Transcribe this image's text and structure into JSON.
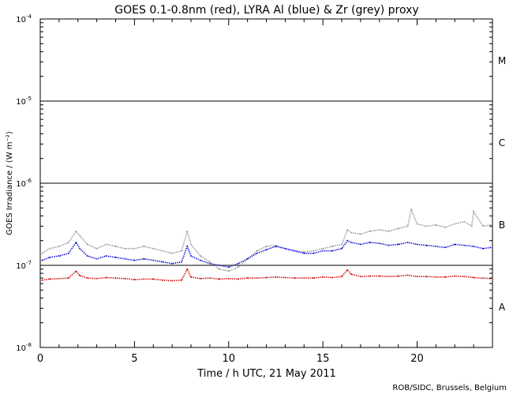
{
  "chart_data": {
    "type": "scatter",
    "title": "GOES 0.1-0.8nm (red), LYRA Al (blue) & Zr (grey) proxy",
    "xlabel": "Time / h UTC, 21 May 2011",
    "ylabel": "GOES Irradiance / (W m⁻²)",
    "xlim": [
      0,
      24
    ],
    "x_ticks": [
      0,
      5,
      10,
      15,
      20
    ],
    "y_scale": "log",
    "ylim": [
      1e-08,
      0.0001
    ],
    "y_ticks": [
      {
        "value": 1e-08,
        "base": "10",
        "exp": "-8"
      },
      {
        "value": 1e-07,
        "base": "10",
        "exp": "-7"
      },
      {
        "value": 1e-06,
        "base": "10",
        "exp": "-6"
      },
      {
        "value": 1e-05,
        "base": "10",
        "exp": "-5"
      },
      {
        "value": 0.0001,
        "base": "10",
        "exp": "-4"
      }
    ],
    "flare_class_lines": [
      1e-07,
      1e-06,
      1e-05
    ],
    "flare_class_labels": [
      {
        "label": "A",
        "center": 3.16e-08
      },
      {
        "label": "B",
        "center": 3.16e-07
      },
      {
        "label": "C",
        "center": 3.16e-06
      },
      {
        "label": "M",
        "center": 3.16e-05
      }
    ],
    "series": [
      {
        "color": "#9a9a9a",
        "x": [
          0.1,
          0.5,
          1.0,
          1.5,
          1.9,
          2.1,
          2.5,
          3.0,
          3.5,
          4.0,
          4.5,
          5.0,
          5.5,
          6.0,
          6.5,
          7.0,
          7.5,
          7.8,
          8.0,
          8.5,
          9.0,
          9.5,
          10.0,
          10.5,
          11.0,
          11.5,
          12.0,
          12.5,
          13.0,
          13.5,
          14.0,
          14.5,
          15.0,
          15.5,
          16.0,
          16.3,
          16.5,
          17.0,
          17.5,
          18.0,
          18.5,
          19.0,
          19.5,
          19.7,
          20.0,
          20.5,
          21.0,
          21.5,
          22.0,
          22.5,
          22.9,
          23.0,
          23.5,
          23.9
        ],
        "y": [
          1.4e-07,
          1.6e-07,
          1.7e-07,
          1.9e-07,
          2.6e-07,
          2.3e-07,
          1.8e-07,
          1.6e-07,
          1.8e-07,
          1.7e-07,
          1.6e-07,
          1.6e-07,
          1.7e-07,
          1.6e-07,
          1.5e-07,
          1.4e-07,
          1.5e-07,
          2.6e-07,
          1.8e-07,
          1.3e-07,
          1.1e-07,
          9e-08,
          8.5e-08,
          9.5e-08,
          1.2e-07,
          1.5e-07,
          1.7e-07,
          1.75e-07,
          1.6e-07,
          1.5e-07,
          1.45e-07,
          1.5e-07,
          1.6e-07,
          1.7e-07,
          1.8e-07,
          2.7e-07,
          2.5e-07,
          2.4e-07,
          2.6e-07,
          2.7e-07,
          2.6e-07,
          2.8e-07,
          3e-07,
          4.8e-07,
          3.2e-07,
          3e-07,
          3.1e-07,
          2.9e-07,
          3.2e-07,
          3.4e-07,
          3e-07,
          4.5e-07,
          3e-07,
          3.1e-07
        ]
      },
      {
        "color": "#1010d0",
        "x": [
          0.1,
          0.5,
          1.0,
          1.5,
          1.9,
          2.1,
          2.5,
          3.0,
          3.5,
          4.0,
          4.5,
          5.0,
          5.5,
          6.0,
          6.5,
          7.0,
          7.5,
          7.8,
          8.0,
          8.5,
          9.0,
          9.5,
          10.0,
          10.5,
          11.0,
          11.5,
          12.0,
          12.5,
          13.0,
          13.5,
          14.0,
          14.5,
          15.0,
          15.5,
          16.0,
          16.3,
          16.5,
          17.0,
          17.5,
          18.0,
          18.5,
          19.0,
          19.5,
          20.0,
          20.5,
          21.0,
          21.5,
          22.0,
          22.5,
          23.0,
          23.5,
          23.9
        ],
        "y": [
          1.15e-07,
          1.25e-07,
          1.3e-07,
          1.4e-07,
          1.9e-07,
          1.6e-07,
          1.3e-07,
          1.2e-07,
          1.3e-07,
          1.25e-07,
          1.2e-07,
          1.15e-07,
          1.2e-07,
          1.15e-07,
          1.1e-07,
          1.05e-07,
          1.1e-07,
          1.7e-07,
          1.3e-07,
          1.15e-07,
          1.05e-07,
          1e-07,
          9.5e-08,
          1.05e-07,
          1.2e-07,
          1.4e-07,
          1.55e-07,
          1.7e-07,
          1.6e-07,
          1.5e-07,
          1.4e-07,
          1.4e-07,
          1.5e-07,
          1.5e-07,
          1.6e-07,
          2e-07,
          1.9e-07,
          1.8e-07,
          1.9e-07,
          1.85e-07,
          1.75e-07,
          1.8e-07,
          1.9e-07,
          1.8e-07,
          1.75e-07,
          1.7e-07,
          1.65e-07,
          1.8e-07,
          1.75e-07,
          1.7e-07,
          1.6e-07,
          1.65e-07
        ]
      },
      {
        "color": "#d01010",
        "x": [
          0.1,
          0.5,
          1.0,
          1.5,
          1.9,
          2.1,
          2.5,
          3.0,
          3.5,
          4.0,
          4.5,
          5.0,
          5.5,
          6.0,
          6.5,
          7.0,
          7.5,
          7.8,
          8.0,
          8.5,
          9.0,
          9.5,
          10.0,
          10.5,
          11.0,
          11.5,
          12.0,
          12.5,
          13.0,
          13.5,
          14.0,
          14.5,
          15.0,
          15.5,
          16.0,
          16.3,
          16.5,
          17.0,
          17.5,
          18.0,
          18.5,
          19.0,
          19.5,
          20.0,
          20.5,
          21.0,
          21.5,
          22.0,
          22.5,
          23.0,
          23.5,
          23.9
        ],
        "y": [
          6.6e-08,
          6.8e-08,
          6.9e-08,
          7e-08,
          8.5e-08,
          7.5e-08,
          7e-08,
          6.9e-08,
          7.1e-08,
          7e-08,
          6.9e-08,
          6.7e-08,
          6.8e-08,
          6.8e-08,
          6.6e-08,
          6.5e-08,
          6.6e-08,
          9e-08,
          7.2e-08,
          6.9e-08,
          7e-08,
          6.8e-08,
          6.9e-08,
          6.8e-08,
          7e-08,
          7e-08,
          7.1e-08,
          7.2e-08,
          7.1e-08,
          7e-08,
          7e-08,
          7e-08,
          7.2e-08,
          7.1e-08,
          7.3e-08,
          8.8e-08,
          7.8e-08,
          7.3e-08,
          7.4e-08,
          7.4e-08,
          7.3e-08,
          7.4e-08,
          7.6e-08,
          7.3e-08,
          7.3e-08,
          7.2e-08,
          7.2e-08,
          7.4e-08,
          7.3e-08,
          7.1e-08,
          7e-08,
          6.9e-08
        ]
      }
    ],
    "credit": "ROB/SIDC, Brussels, Belgium"
  }
}
